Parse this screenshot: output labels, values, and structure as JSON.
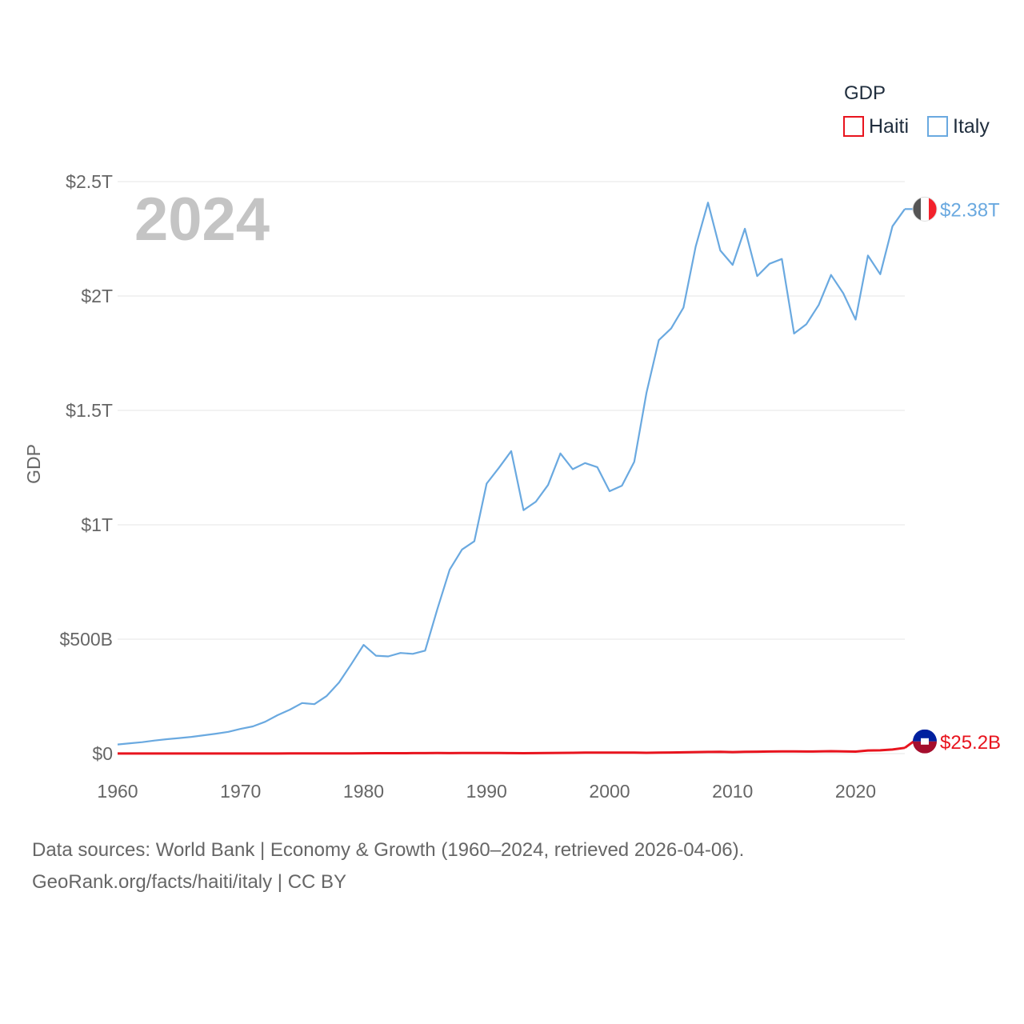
{
  "chart_data": {
    "type": "line",
    "year_label": "2024",
    "ylabel": "GDP",
    "xlabel": "",
    "legend_title": "GDP",
    "legend_position": "top-right",
    "grid": true,
    "xlim": [
      1960,
      2024
    ],
    "ylim": [
      0,
      2500000000000
    ],
    "x_ticks": [
      1960,
      1970,
      1980,
      1990,
      2000,
      2010,
      2020
    ],
    "x_tick_labels": [
      "1960",
      "1970",
      "1980",
      "1990",
      "2000",
      "2010",
      "2020"
    ],
    "y_ticks": [
      0,
      500000000000,
      1000000000000,
      1500000000000,
      2000000000000,
      2500000000000
    ],
    "y_tick_labels": [
      "$0",
      "$500B",
      "$1T",
      "$1.5T",
      "$2T",
      "$2.5T"
    ],
    "x": [
      1960,
      1961,
      1962,
      1963,
      1964,
      1965,
      1966,
      1967,
      1968,
      1969,
      1970,
      1971,
      1972,
      1973,
      1974,
      1975,
      1976,
      1977,
      1978,
      1979,
      1980,
      1981,
      1982,
      1983,
      1984,
      1985,
      1986,
      1987,
      1988,
      1989,
      1990,
      1991,
      1992,
      1993,
      1994,
      1995,
      1996,
      1997,
      1998,
      1999,
      2000,
      2001,
      2002,
      2003,
      2004,
      2005,
      2006,
      2007,
      2008,
      2009,
      2010,
      2011,
      2012,
      2013,
      2014,
      2015,
      2016,
      2017,
      2018,
      2019,
      2020,
      2021,
      2022,
      2023,
      2024
    ],
    "series": [
      {
        "name": "Haiti",
        "color": "#e8141e",
        "end_label": "$25.2B",
        "flag": "haiti-flag",
        "values": [
          0.27,
          0.28,
          0.29,
          0.3,
          0.31,
          0.32,
          0.33,
          0.34,
          0.35,
          0.36,
          0.39,
          0.42,
          0.45,
          0.52,
          0.63,
          0.7,
          0.86,
          1.0,
          1.1,
          1.2,
          1.5,
          1.6,
          1.8,
          1.9,
          2.0,
          2.1,
          2.3,
          2.2,
          2.3,
          2.5,
          2.6,
          2.8,
          2.1,
          1.9,
          2.1,
          2.9,
          3.2,
          3.6,
          4.1,
          4.3,
          4.6,
          4.4,
          4.1,
          3.5,
          4.3,
          5.0,
          5.5,
          6.5,
          7.2,
          7.7,
          6.6,
          8.1,
          8.5,
          9.2,
          9.5,
          9.4,
          9.1,
          9.6,
          10.6,
          9.8,
          8.9,
          13.8,
          14.5,
          17.8,
          25.2
        ]
      },
      {
        "name": "Italy",
        "color": "#6aa9e0",
        "end_label": "$2.38T",
        "flag": "italy-flag",
        "values": [
          40,
          45,
          50,
          57,
          63,
          68,
          73,
          80,
          87,
          95,
          108,
          119,
          139,
          168,
          192,
          221,
          216,
          252,
          311,
          391,
          475,
          428,
          425,
          440,
          436,
          450,
          633,
          804,
          892,
          928,
          1180,
          1249,
          1322,
          1064,
          1101,
          1174,
          1312,
          1243,
          1270,
          1252,
          1147,
          1171,
          1275,
          1577,
          1807,
          1858,
          1949,
          2216,
          2408,
          2199,
          2136,
          2294,
          2087,
          2141,
          2162,
          1836,
          1877,
          1961,
          2092,
          2012,
          1897,
          2177,
          2095,
          2305,
          2380
        ]
      }
    ]
  },
  "footer": {
    "line1": "Data sources: World Bank | Economy & Growth (1960–2024, retrieved 2026-04-06).",
    "line2": "GeoRank.org/facts/haiti/italy | CC BY"
  }
}
